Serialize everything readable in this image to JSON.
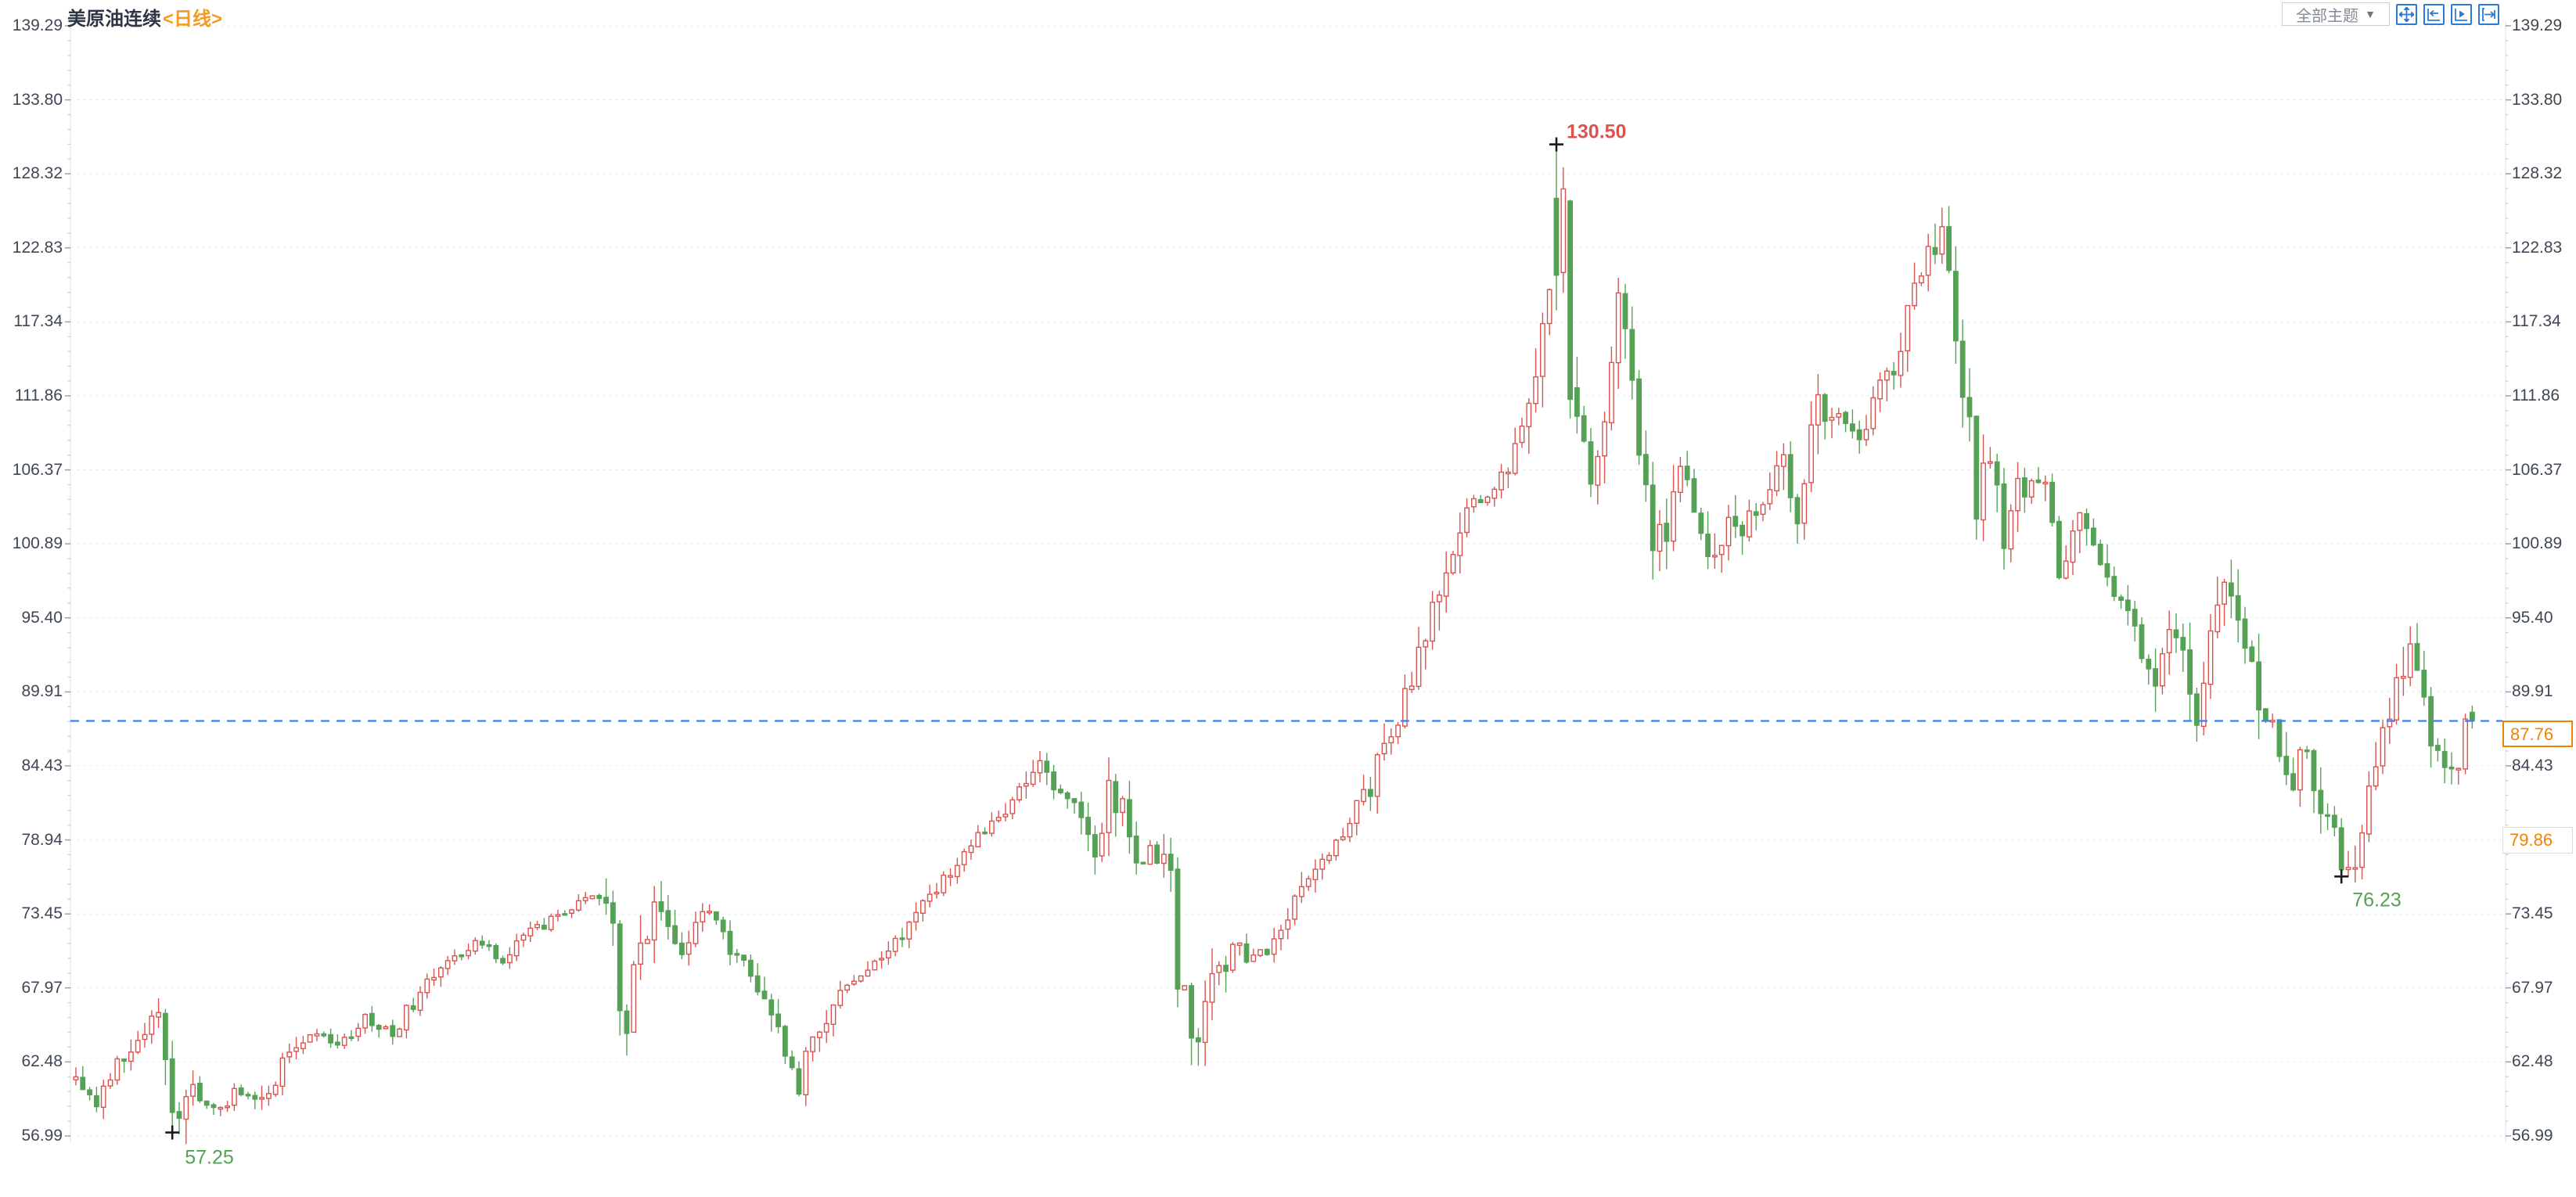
{
  "header": {
    "symbol": "美原油连续",
    "interval": "<日线>"
  },
  "controls": {
    "theme_dropdown_label": "全部主题",
    "icons": [
      "crosshair",
      "go-to-start",
      "playback",
      "go-to-latest"
    ]
  },
  "chart_data": {
    "type": "candlestick",
    "title": "美原油连续 <日线>",
    "symbol": "美原油连续",
    "interval": "日线",
    "candle_style": {
      "up": "hollow-red",
      "down": "solid-green"
    },
    "grid": "horizontal-dotted",
    "legend_position": "none",
    "y_axis": {
      "sides": "both",
      "min": 56.99,
      "max": 139.29,
      "ticks": [
        "139.29",
        "133.80",
        "128.32",
        "122.83",
        "117.34",
        "111.86",
        "106.37",
        "100.89",
        "95.40",
        "89.91",
        "84.43",
        "78.94",
        "73.45",
        "67.97",
        "62.48",
        "56.99"
      ]
    },
    "x_axis": {
      "labels_visible": false,
      "candle_count": 349
    },
    "annotations": {
      "high": {
        "value": 130.5,
        "label": "130.50",
        "candle_index": 215,
        "marker": "black-cross",
        "color": "#d9544f"
      },
      "low1": {
        "value": 57.25,
        "label": "57.25",
        "candle_index": 14,
        "marker": "black-cross",
        "color": "#55a155"
      },
      "low2": {
        "value": 76.23,
        "label": "76.23",
        "candle_index": 329,
        "marker": "black-cross",
        "color": "#55a155"
      },
      "last_price": {
        "value": 87.76,
        "label": "87.76",
        "line": "dashed-blue"
      },
      "settlement": {
        "value": 79.86,
        "label": "79.86"
      }
    },
    "series_anchors": [
      [
        0,
        61.2
      ],
      [
        3,
        59.6
      ],
      [
        6,
        62.5
      ],
      [
        9,
        64.5
      ],
      [
        12,
        66.2
      ],
      [
        14,
        58.3
      ],
      [
        17,
        60.2
      ],
      [
        20,
        58.8
      ],
      [
        24,
        60.5
      ],
      [
        27,
        59.4
      ],
      [
        31,
        63.4
      ],
      [
        35,
        64.6
      ],
      [
        38,
        63.3
      ],
      [
        42,
        65.8
      ],
      [
        46,
        64.7
      ],
      [
        50,
        67.6
      ],
      [
        54,
        69.7
      ],
      [
        58,
        71.3
      ],
      [
        62,
        70.2
      ],
      [
        66,
        72.1
      ],
      [
        70,
        73.2
      ],
      [
        75,
        75.1
      ],
      [
        78,
        73.2
      ],
      [
        79,
        66.0
      ],
      [
        80,
        64.8
      ],
      [
        82,
        72.0
      ],
      [
        84,
        74.0
      ],
      [
        86,
        72.5
      ],
      [
        88,
        70.5
      ],
      [
        90,
        72.8
      ],
      [
        92,
        73.3
      ],
      [
        95,
        71.0
      ],
      [
        97,
        69.5
      ],
      [
        99,
        67.0
      ],
      [
        101,
        65.5
      ],
      [
        103,
        63.0
      ],
      [
        105,
        61.2
      ],
      [
        106,
        63.5
      ],
      [
        108,
        65.5
      ],
      [
        110,
        66.8
      ],
      [
        113,
        68.3
      ],
      [
        116,
        70.3
      ],
      [
        119,
        71.6
      ],
      [
        123,
        74.0
      ],
      [
        127,
        76.8
      ],
      [
        130,
        78.6
      ],
      [
        133,
        80.0
      ],
      [
        136,
        82.0
      ],
      [
        138,
        83.4
      ],
      [
        140,
        85.0
      ],
      [
        143,
        82.4
      ],
      [
        146,
        80.8
      ],
      [
        148,
        78.4
      ],
      [
        150,
        82.8
      ],
      [
        152,
        81.2
      ],
      [
        154,
        77.5
      ],
      [
        157,
        78.2
      ],
      [
        159,
        76.8
      ],
      [
        160,
        68.9
      ],
      [
        163,
        63.4
      ],
      [
        165,
        68.3
      ],
      [
        168,
        71.2
      ],
      [
        171,
        69.9
      ],
      [
        174,
        71.6
      ],
      [
        177,
        74.6
      ],
      [
        181,
        77.4
      ],
      [
        185,
        80.2
      ],
      [
        188,
        83.1
      ],
      [
        192,
        87.9
      ],
      [
        196,
        93.2
      ],
      [
        199,
        99.0
      ],
      [
        201,
        102.6
      ],
      [
        204,
        104.2
      ],
      [
        207,
        106.0
      ],
      [
        209,
        108.3
      ],
      [
        211,
        111.2
      ],
      [
        213,
        116.5
      ],
      [
        215,
        126.0
      ],
      [
        216,
        124.0
      ],
      [
        217,
        112.6
      ],
      [
        219,
        107.8
      ],
      [
        220,
        103.8
      ],
      [
        222,
        110.5
      ],
      [
        224,
        119.2
      ],
      [
        226,
        113.0
      ],
      [
        227,
        107.5
      ],
      [
        229,
        100.6
      ],
      [
        231,
        102.5
      ],
      [
        233,
        106.6
      ],
      [
        235,
        104.0
      ],
      [
        238,
        99.8
      ],
      [
        240,
        103.5
      ],
      [
        242,
        101.5
      ],
      [
        245,
        104.6
      ],
      [
        248,
        106.5
      ],
      [
        250,
        102.2
      ],
      [
        253,
        112.0
      ],
      [
        256,
        110.0
      ],
      [
        259,
        108.6
      ],
      [
        262,
        113.0
      ],
      [
        265,
        115.5
      ],
      [
        267,
        119.8
      ],
      [
        270,
        122.9
      ],
      [
        271,
        123.3
      ],
      [
        273,
        116.8
      ],
      [
        275,
        108.8
      ],
      [
        276,
        103.5
      ],
      [
        278,
        107.0
      ],
      [
        280,
        101.2
      ],
      [
        282,
        104.5
      ],
      [
        286,
        104.9
      ],
      [
        288,
        99.3
      ],
      [
        291,
        103.9
      ],
      [
        293,
        99.8
      ],
      [
        296,
        97.2
      ],
      [
        299,
        95.3
      ],
      [
        300,
        93.2
      ],
      [
        302,
        90.2
      ],
      [
        304,
        94.2
      ],
      [
        306,
        92.0
      ],
      [
        308,
        88.5
      ],
      [
        311,
        95.8
      ],
      [
        313,
        97.5
      ],
      [
        314,
        96.0
      ],
      [
        316,
        92.0
      ],
      [
        318,
        88.3
      ],
      [
        321,
        82.2
      ],
      [
        323,
        86.0
      ],
      [
        325,
        83.5
      ],
      [
        327,
        80.9
      ],
      [
        329,
        77.2
      ],
      [
        331,
        78.0
      ],
      [
        333,
        81.8
      ],
      [
        335,
        86.3
      ],
      [
        337,
        92.2
      ],
      [
        339,
        93.0
      ],
      [
        341,
        88.6
      ],
      [
        343,
        85.0
      ],
      [
        345,
        84.4
      ],
      [
        347,
        85.0
      ],
      [
        348,
        87.76
      ]
    ],
    "forced_candles": {
      "14": {
        "low": 57.25
      },
      "215": {
        "open": 126.5,
        "close": 120.8,
        "high": 130.5,
        "low": 118.2
      },
      "216": {
        "open": 121.0,
        "close": 127.2,
        "high": 128.8,
        "low": 119.5
      },
      "217": {
        "open": 126.3,
        "close": 111.6,
        "low": 110.2
      },
      "329": {
        "low": 76.23
      },
      "347": {
        "open": 84.2,
        "close": 87.9,
        "high": 88.3,
        "low": 83.8
      },
      "348": {
        "open": 88.4,
        "close": 87.76,
        "high": 88.9,
        "low": 87.2
      }
    },
    "colors": {
      "up": "#d9544f",
      "down": "#55a155",
      "last_price_line": "#3d7ef0",
      "last_price_text": "#f08200",
      "annotation_high": "#d9544f",
      "annotation_low": "#55a155",
      "axis_text": "#3f4654",
      "grid": "#e7e9ee",
      "marker": "#1a1a1a"
    }
  }
}
